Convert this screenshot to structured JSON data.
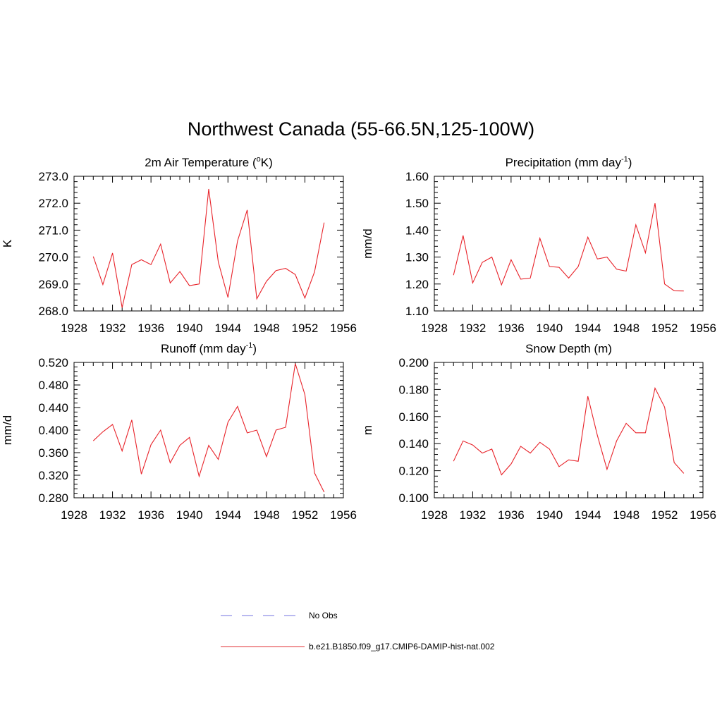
{
  "title": "Northwest Canada (55-66.5N,125-100W)",
  "legend": [
    {
      "label": "No Obs",
      "color": "#8f8fe8",
      "style": "dashed"
    },
    {
      "label": "b.e21.B1850.f09_g17.CMIP6-DAMIP-hist-nat.002",
      "color": "#e8595c",
      "style": "solid"
    }
  ],
  "chart_data": [
    {
      "type": "line",
      "title": "2m Air Temperature (",
      "title_sup": "o",
      "title_tail": "K)",
      "ylabel": "K",
      "xlim": [
        1928,
        1956
      ],
      "ylim": [
        268.0,
        273.0
      ],
      "xticks": [
        1928,
        1932,
        1936,
        1940,
        1944,
        1948,
        1952,
        1956
      ],
      "yticks": [
        "268.0",
        "269.0",
        "270.0",
        "271.0",
        "272.0",
        "273.0"
      ],
      "x": [
        1930,
        1931,
        1932,
        1933,
        1934,
        1935,
        1936,
        1937,
        1938,
        1939,
        1940,
        1941,
        1942,
        1943,
        1944,
        1945,
        1946,
        1947,
        1948,
        1949,
        1950,
        1951,
        1952,
        1953,
        1954
      ],
      "series": [
        {
          "color": "#e8232a",
          "values": [
            270.02,
            268.98,
            270.15,
            268.12,
            269.72,
            269.9,
            269.72,
            270.48,
            269.04,
            269.46,
            268.94,
            269.0,
            272.53,
            269.82,
            268.5,
            270.6,
            271.75,
            268.45,
            269.1,
            269.5,
            269.58,
            269.35,
            268.48,
            269.45,
            271.28
          ]
        }
      ]
    },
    {
      "type": "line",
      "title": "Precipitation (mm day",
      "title_sup": "-1",
      "title_tail": ")",
      "ylabel": "mm/d",
      "xlim": [
        1928,
        1956
      ],
      "ylim": [
        1.1,
        1.6
      ],
      "xticks": [
        1928,
        1932,
        1936,
        1940,
        1944,
        1948,
        1952,
        1956
      ],
      "yticks": [
        "1.10",
        "1.20",
        "1.30",
        "1.40",
        "1.50",
        "1.60"
      ],
      "x": [
        1930,
        1931,
        1932,
        1933,
        1934,
        1935,
        1936,
        1937,
        1938,
        1939,
        1940,
        1941,
        1942,
        1943,
        1944,
        1945,
        1946,
        1947,
        1948,
        1949,
        1950,
        1951,
        1952,
        1953,
        1954
      ],
      "series": [
        {
          "color": "#e8232a",
          "values": [
            1.233,
            1.38,
            1.204,
            1.28,
            1.3,
            1.197,
            1.29,
            1.218,
            1.222,
            1.37,
            1.265,
            1.262,
            1.222,
            1.265,
            1.374,
            1.293,
            1.3,
            1.255,
            1.248,
            1.42,
            1.316,
            1.5,
            1.2,
            1.175,
            1.174
          ]
        }
      ]
    },
    {
      "type": "line",
      "title": "Runoff (mm day",
      "title_sup": "-1",
      "title_tail": ")",
      "ylabel": "mm/d",
      "xlim": [
        1928,
        1956
      ],
      "ylim": [
        0.28,
        0.52
      ],
      "xticks": [
        1928,
        1932,
        1936,
        1940,
        1944,
        1948,
        1952,
        1956
      ],
      "yticks": [
        "0.280",
        "0.320",
        "0.360",
        "0.400",
        "0.440",
        "0.480",
        "0.520"
      ],
      "x": [
        1930,
        1931,
        1932,
        1933,
        1934,
        1935,
        1936,
        1937,
        1938,
        1939,
        1940,
        1941,
        1942,
        1943,
        1944,
        1945,
        1946,
        1947,
        1948,
        1949,
        1950,
        1951,
        1952,
        1953,
        1954
      ],
      "series": [
        {
          "color": "#e8232a",
          "values": [
            0.381,
            0.397,
            0.41,
            0.363,
            0.418,
            0.322,
            0.374,
            0.4,
            0.342,
            0.373,
            0.387,
            0.318,
            0.373,
            0.348,
            0.414,
            0.442,
            0.395,
            0.4,
            0.353,
            0.4,
            0.405,
            0.518,
            0.463,
            0.324,
            0.29
          ]
        }
      ]
    },
    {
      "type": "line",
      "title": "Snow Depth (m)",
      "title_sup": "",
      "title_tail": "",
      "ylabel": "m",
      "xlim": [
        1928,
        1956
      ],
      "ylim": [
        0.1,
        0.2
      ],
      "xticks": [
        1928,
        1932,
        1936,
        1940,
        1944,
        1948,
        1952,
        1956
      ],
      "yticks": [
        "0.100",
        "0.120",
        "0.140",
        "0.160",
        "0.180",
        "0.200"
      ],
      "x": [
        1930,
        1931,
        1932,
        1933,
        1934,
        1935,
        1936,
        1937,
        1938,
        1939,
        1940,
        1941,
        1942,
        1943,
        1944,
        1945,
        1946,
        1947,
        1948,
        1949,
        1950,
        1951,
        1952,
        1953,
        1954
      ],
      "series": [
        {
          "color": "#e8232a",
          "values": [
            0.127,
            0.142,
            0.139,
            0.133,
            0.136,
            0.117,
            0.125,
            0.138,
            0.133,
            0.141,
            0.136,
            0.123,
            0.128,
            0.127,
            0.175,
            0.146,
            0.121,
            0.142,
            0.155,
            0.148,
            0.148,
            0.181,
            0.167,
            0.126,
            0.118
          ]
        }
      ]
    }
  ]
}
